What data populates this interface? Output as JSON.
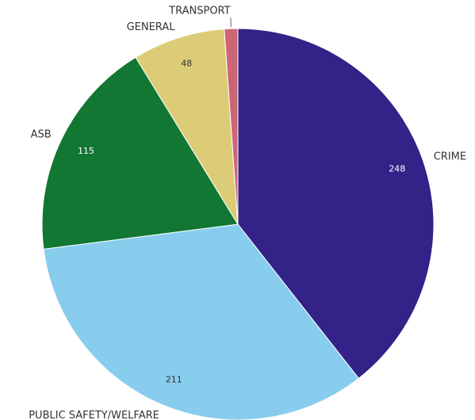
{
  "chart_data": {
    "type": "pie",
    "categories": [
      "CRIME",
      "PUBLIC SAFETY/WELFARE",
      "ASB",
      "GENERAL",
      "TRANSPORT"
    ],
    "values": [
      248,
      211,
      115,
      48,
      7
    ],
    "colors": [
      "#332288",
      "#88ccee",
      "#117733",
      "#ddcc77",
      "#cc6677"
    ]
  }
}
